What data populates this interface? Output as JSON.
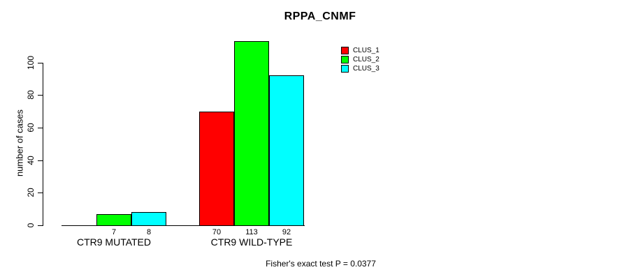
{
  "chart_data": {
    "type": "bar",
    "title": "RPPA_CNMF",
    "xlabel": "",
    "ylabel": "number of cases",
    "categories": [
      "CTR9 MUTATED",
      "CTR9 WILD-TYPE"
    ],
    "series": [
      {
        "name": "CLUS_1",
        "color": "#FF0000",
        "values": [
          0,
          70
        ]
      },
      {
        "name": "CLUS_2",
        "color": "#00FF00",
        "values": [
          7,
          113
        ]
      },
      {
        "name": "CLUS_3",
        "color": "#00FFFF",
        "values": [
          8,
          92
        ]
      }
    ],
    "bar_value_labels": [
      "7",
      "8",
      "70",
      "113",
      "92"
    ],
    "yticks": [
      0,
      20,
      40,
      60,
      80,
      100
    ],
    "ylim": [
      0,
      115
    ],
    "grid": false,
    "legend_position": "top-right",
    "bar_border_color": "#000000",
    "annotation": "Fisher's exact test P = 0.0377"
  }
}
